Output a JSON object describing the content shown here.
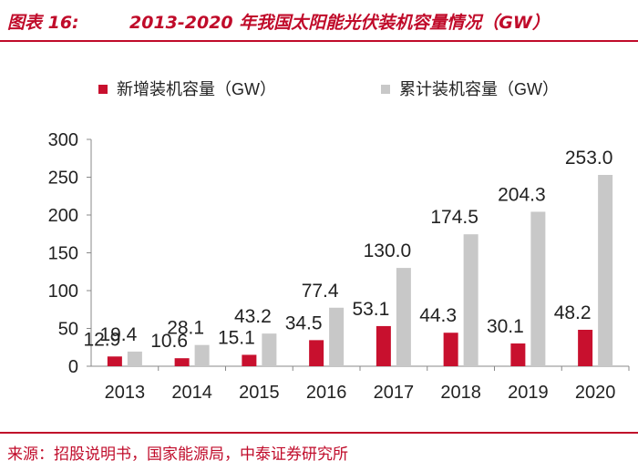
{
  "figure": {
    "label": "图表 16:",
    "title": "2013-2020 年我国太阳能光伏装机容量情况（GW）"
  },
  "source": "来源：招股说明书，国家能源局，中泰证券研究所",
  "colors": {
    "accent": "#c00b2a",
    "new_series": "#c8102e",
    "cumulative_series": "#c8c8c8"
  },
  "chart_data": {
    "type": "bar",
    "title": "2013-2020 年我国太阳能光伏装机容量情况（GW）",
    "categories": [
      "2013",
      "2014",
      "2015",
      "2016",
      "2017",
      "2018",
      "2019",
      "2020"
    ],
    "series": [
      {
        "name": "新增装机容量（GW）",
        "values": [
          12.9,
          10.6,
          15.1,
          34.5,
          53.1,
          44.3,
          30.1,
          48.2
        ]
      },
      {
        "name": "累计装机容量（GW）",
        "values": [
          19.4,
          28.1,
          43.2,
          77.4,
          130.0,
          174.5,
          204.3,
          253.0
        ]
      }
    ],
    "ylim": [
      0,
      300
    ],
    "yticks": [
      0,
      50,
      100,
      150,
      200,
      250,
      300
    ],
    "xlabel": "",
    "ylabel": "",
    "legend": "top",
    "grid": false
  }
}
